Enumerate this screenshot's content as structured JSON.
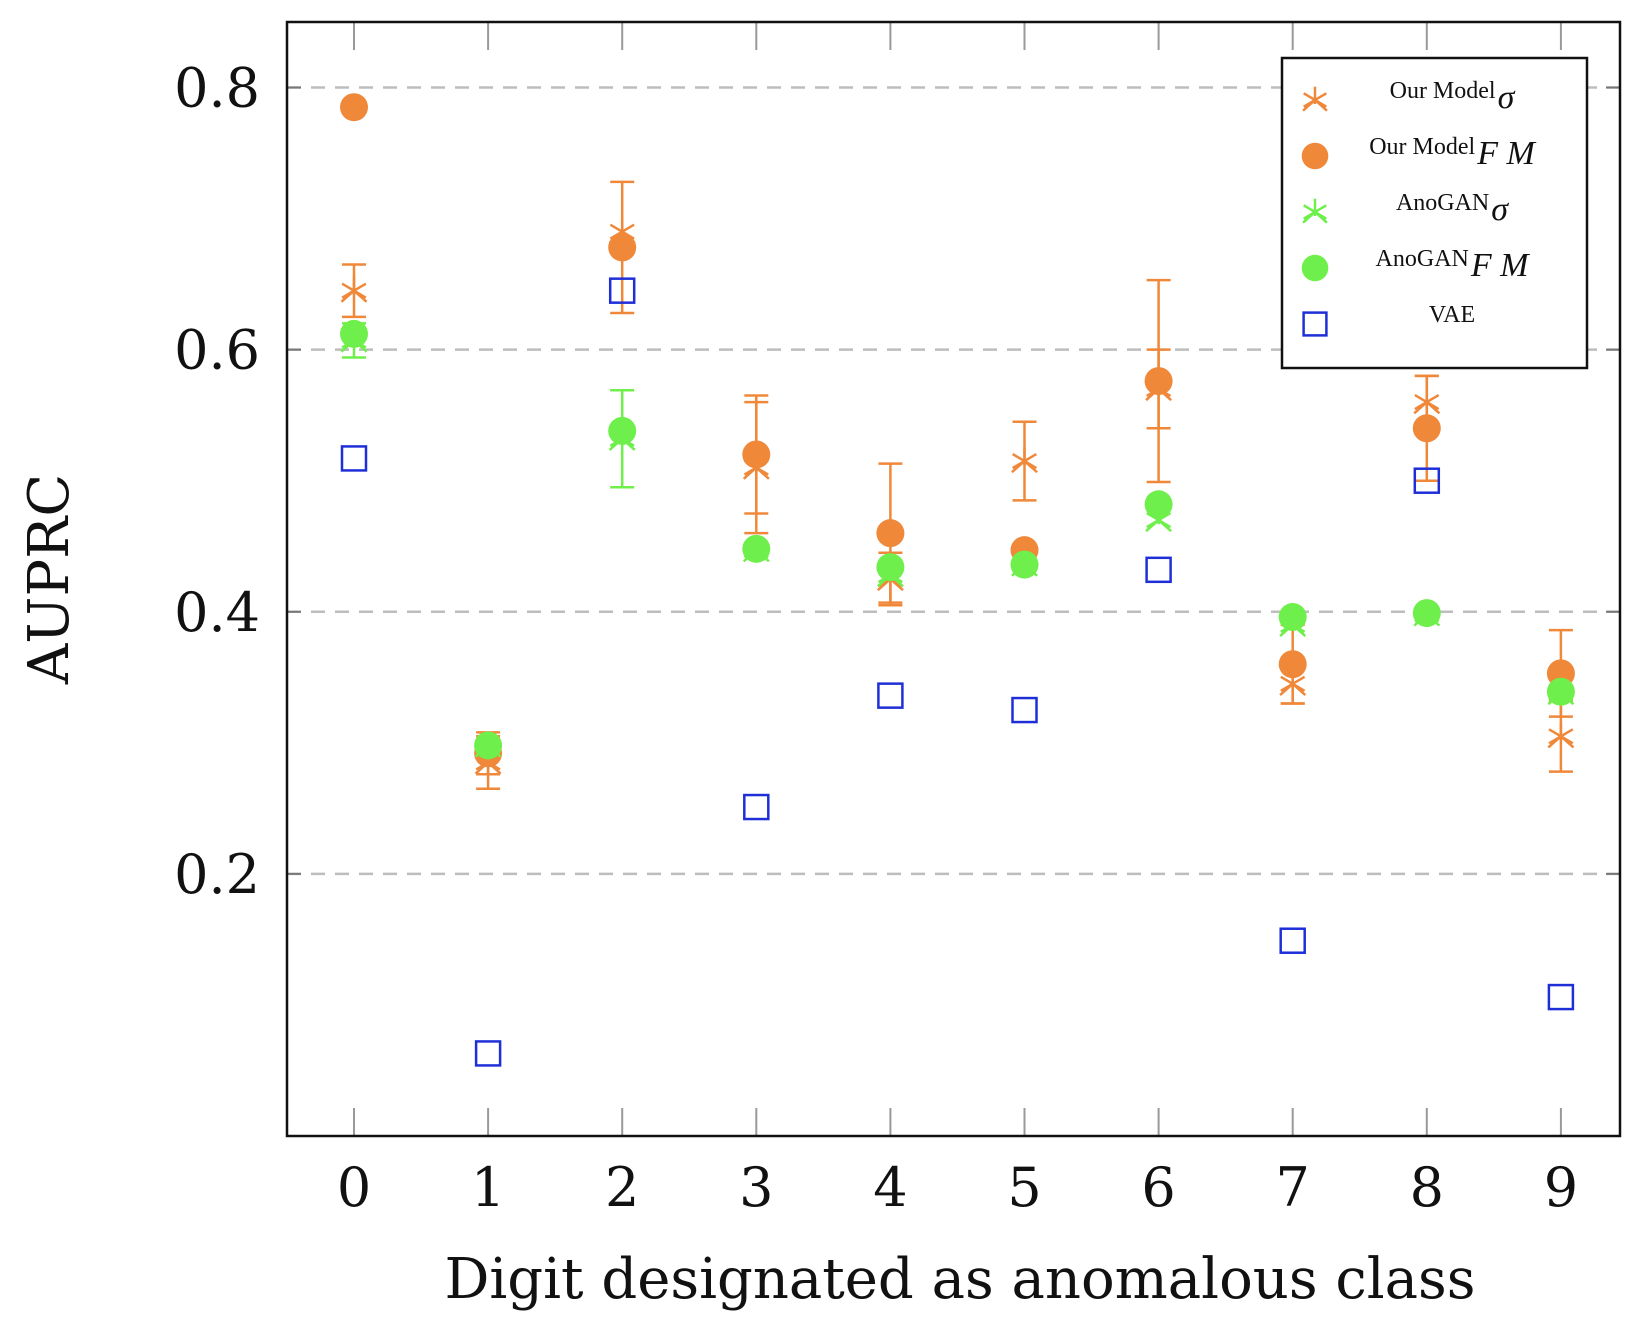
{
  "chart_data": {
    "type": "scatter",
    "xlabel": "Digit designated as anomalous class",
    "ylabel": "AUPRC",
    "xlim": [
      -0.5,
      9.5
    ],
    "ylim": [
      0.0,
      0.85
    ],
    "x_ticks": [
      0,
      1,
      2,
      3,
      4,
      5,
      6,
      7,
      8,
      9
    ],
    "y_ticks": [
      0.2,
      0.4,
      0.6,
      0.8
    ],
    "y_tick_labels": [
      "0.2",
      "0.4",
      "0.6",
      "0.8"
    ],
    "grid": "horizontal dashed",
    "legend_position": "top-right",
    "series": [
      {
        "name": "Our Model",
        "subscript": "σ",
        "marker": "asterisk",
        "color": "#f0883a",
        "x": [
          0,
          1,
          2,
          3,
          4,
          5,
          6,
          7,
          8,
          9
        ],
        "y": [
          0.645,
          0.285,
          0.69,
          0.51,
          0.425,
          0.515,
          0.57,
          0.345,
          0.56,
          0.305
        ],
        "err": [
          0.02,
          0.02,
          0.0,
          0.05,
          0.02,
          0.03,
          0.03,
          0.015,
          0.02,
          0.027
        ]
      },
      {
        "name": "Our Model",
        "subscript": "F M",
        "marker": "circle",
        "color": "#f0883a",
        "x": [
          0,
          1,
          2,
          3,
          4,
          5,
          6,
          7,
          8,
          9
        ],
        "y": [
          0.785,
          0.292,
          0.678,
          0.52,
          0.46,
          0.447,
          0.576,
          0.36,
          0.54,
          0.353
        ],
        "err": [
          0.0,
          0.016,
          0.05,
          0.045,
          0.053,
          0.0,
          0.077,
          0.03,
          0.04,
          0.033
        ]
      },
      {
        "name": "AnoGAN",
        "subscript": "σ",
        "marker": "asterisk",
        "color": "#6fef4b",
        "x": [
          0,
          1,
          2,
          3,
          4,
          5,
          6,
          7,
          8,
          9
        ],
        "y": [
          0.607,
          0.298,
          0.532,
          0.447,
          0.428,
          0.436,
          0.47,
          0.39,
          0.398,
          0.338
        ],
        "err": [
          0.013,
          0.0,
          0.037,
          0.0,
          0.0,
          0.0,
          0.0,
          0.0,
          0.0,
          0.0
        ]
      },
      {
        "name": "AnoGAN",
        "subscript": "F M",
        "marker": "circle",
        "color": "#6fef4b",
        "x": [
          0,
          1,
          2,
          3,
          4,
          5,
          6,
          7,
          8,
          9
        ],
        "y": [
          0.612,
          0.298,
          0.538,
          0.448,
          0.434,
          0.436,
          0.482,
          0.396,
          0.399,
          0.339
        ],
        "err": [
          0.0,
          0.0,
          0.0,
          0.0,
          0.0,
          0.0,
          0.0,
          0.0,
          0.0,
          0.0
        ]
      },
      {
        "name": "VAE",
        "subscript": "",
        "marker": "square",
        "color": "#1f2fd8",
        "x": [
          0,
          1,
          2,
          3,
          4,
          5,
          6,
          7,
          8,
          9
        ],
        "y": [
          0.517,
          0.063,
          0.645,
          0.251,
          0.336,
          0.325,
          0.432,
          0.149,
          0.5,
          0.106
        ],
        "err": [
          0,
          0,
          0,
          0,
          0,
          0,
          0,
          0,
          0,
          0
        ]
      }
    ]
  }
}
